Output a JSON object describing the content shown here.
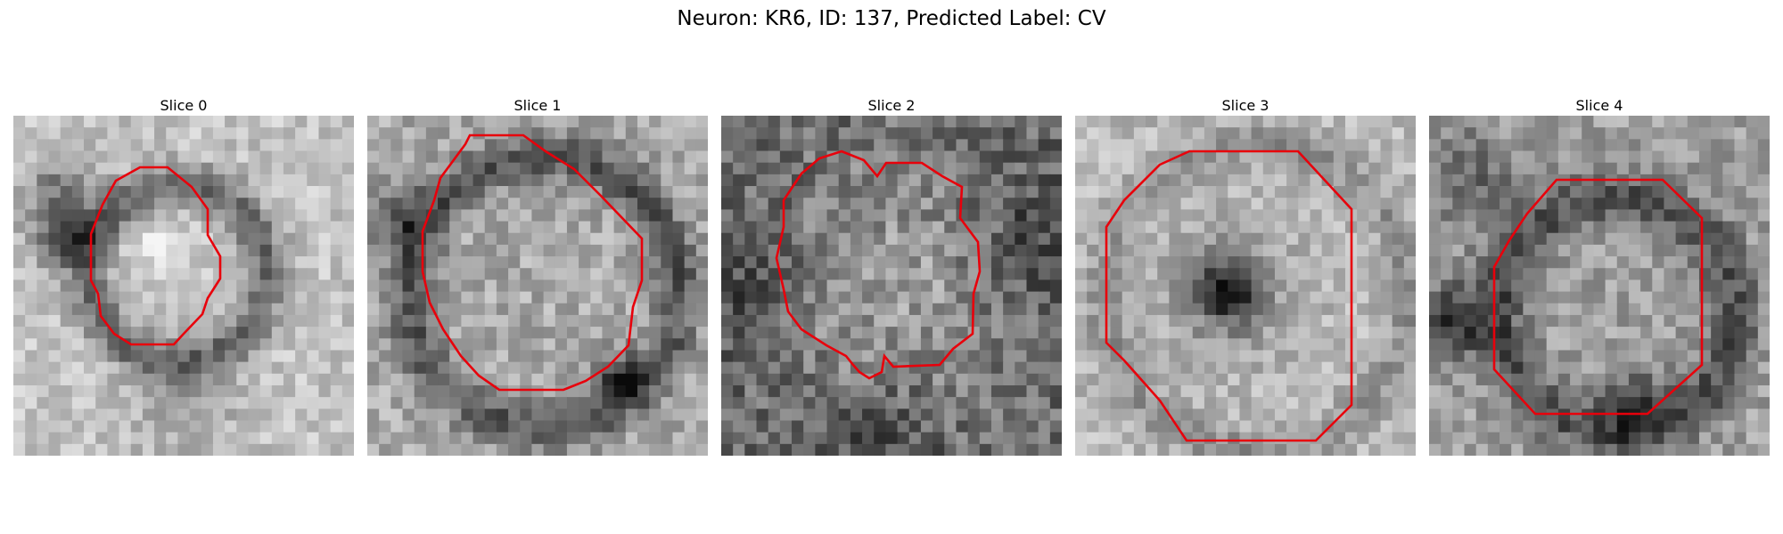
{
  "figure": {
    "title": "Neuron: KR6, ID: 137, Predicted Label: CV",
    "contour_color": "#e8000b"
  },
  "panels": [
    {
      "label": "Slice 0",
      "style": "bright"
    },
    {
      "label": "Slice 1",
      "style": "medium-ring"
    },
    {
      "label": "Slice 2",
      "style": "dark-noisy"
    },
    {
      "label": "Slice 3",
      "style": "bright-dark-center"
    },
    {
      "label": "Slice 4",
      "style": "dark-ring"
    }
  ]
}
